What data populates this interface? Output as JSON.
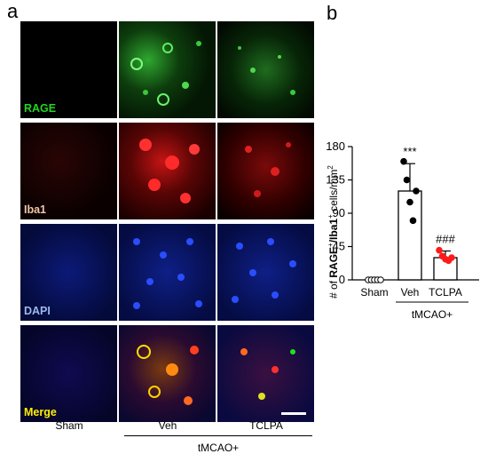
{
  "panels": {
    "a": "a",
    "b": "b"
  },
  "micrographs": {
    "row_labels": [
      {
        "text": "RAGE",
        "color": "#22d422"
      },
      {
        "text": "Iba1",
        "color": "#f2c6a6"
      },
      {
        "text": "DAPI",
        "color": "#9bb8ee"
      },
      {
        "text": "Merge",
        "color": "#ffee00"
      }
    ],
    "column_labels": [
      "Sham",
      "Veh",
      "TCLPA"
    ],
    "group_label": "tMCAO+"
  },
  "chart_data": {
    "type": "bar",
    "categories": [
      "Sham",
      "Veh",
      "TCLPA"
    ],
    "values": [
      0,
      120,
      30
    ],
    "error": [
      0,
      37,
      9
    ],
    "points": [
      [
        0,
        0,
        0,
        0,
        0
      ],
      [
        160,
        135,
        105,
        80,
        120
      ],
      [
        40,
        32,
        28,
        26,
        30
      ]
    ],
    "point_colors": [
      "#ffffff",
      "#000000",
      "#ff1a1a"
    ],
    "significance": [
      "",
      "***",
      "###"
    ],
    "ylabel_parts": [
      "# of ",
      "RAGE",
      "+",
      "/",
      "Iba1",
      "+",
      " cells/mm",
      "2"
    ],
    "yticks": [
      0,
      45,
      90,
      135,
      180
    ],
    "ylim": [
      0,
      180
    ],
    "group_label": "tMCAO+"
  }
}
